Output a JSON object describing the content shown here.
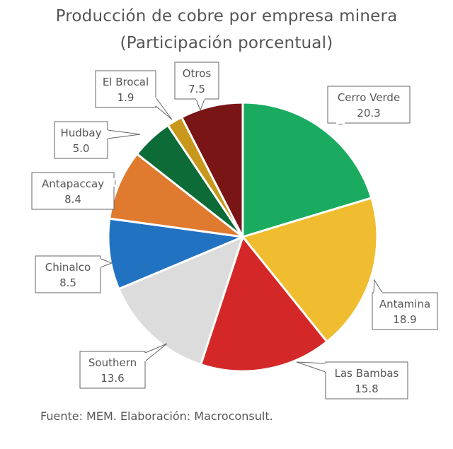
{
  "chart_data": {
    "type": "pie",
    "title": "Producción de cobre por empresa minera",
    "subtitle": "(Participación porcentual)",
    "slices": [
      {
        "label": "Cerro Verde",
        "value": 20.3,
        "value_label": "20.3",
        "color": "#1aab60"
      },
      {
        "label": "Antamina",
        "value": 18.9,
        "value_label": "18.9",
        "color": "#f0bd30"
      },
      {
        "label": "Las Bambas",
        "value": 15.8,
        "value_label": "15.8",
        "color": "#d42828"
      },
      {
        "label": "Southern",
        "value": 13.6,
        "value_label": "13.6",
        "color": "#dcdcdc"
      },
      {
        "label": "Chinalco",
        "value": 8.5,
        "value_label": "8.5",
        "color": "#2272c2"
      },
      {
        "label": "Antapaccay",
        "value": 8.4,
        "value_label": "8.4",
        "color": "#e07a2e"
      },
      {
        "label": "Hudbay",
        "value": 5.0,
        "value_label": "5.0",
        "color": "#0d6b38"
      },
      {
        "label": "El Brocal",
        "value": 1.9,
        "value_label": "1.9",
        "color": "#c8981c"
      },
      {
        "label": "Otros",
        "value": 7.5,
        "value_label": "7.5",
        "color": "#7a1515"
      }
    ],
    "legend": "none"
  },
  "source": "Fuente: MEM. Elaboración: Macroconsult."
}
